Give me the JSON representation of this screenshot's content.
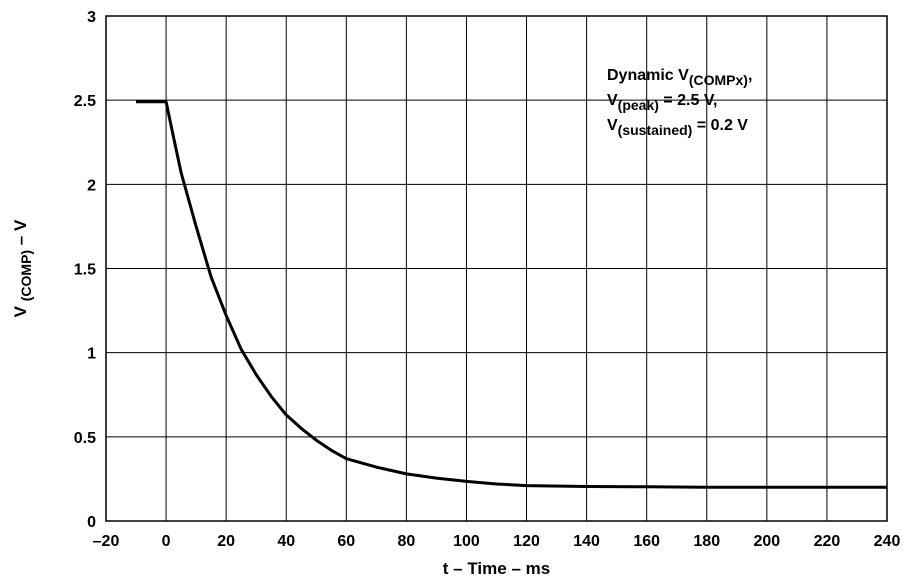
{
  "chart_data": {
    "type": "line",
    "title": "",
    "xlabel": "t – Time – ms",
    "ylabel": {
      "main": "V",
      "sub": "(COMP)",
      "suffix": "– V"
    },
    "xlim": [
      -20,
      240
    ],
    "ylim": [
      0,
      3
    ],
    "grid": true,
    "x_ticks": [
      "–20",
      "0",
      "20",
      "40",
      "60",
      "80",
      "100",
      "120",
      "140",
      "160",
      "180",
      "200",
      "220",
      "240"
    ],
    "x_tick_values": [
      -20,
      0,
      20,
      40,
      60,
      80,
      100,
      120,
      140,
      160,
      180,
      200,
      220,
      240
    ],
    "y_ticks": [
      "0",
      "0.5",
      "1",
      "1.5",
      "2",
      "2.5",
      "3"
    ],
    "y_tick_values": [
      0,
      0.5,
      1,
      1.5,
      2,
      2.5,
      3
    ],
    "annotation": [
      [
        {
          "t": "Dynamic V",
          "s": false
        },
        {
          "t": "(COMPx)",
          "s": true
        },
        {
          "t": ",",
          "s": false
        }
      ],
      [
        {
          "t": "V",
          "s": false
        },
        {
          "t": "(peak)",
          "s": true
        },
        {
          "t": " = 2.5  V,",
          "s": false
        }
      ],
      [
        {
          "t": "V",
          "s": false
        },
        {
          "t": "(sustained)",
          "s": true
        },
        {
          "t": " = 0.2  V",
          "s": false
        }
      ]
    ],
    "series": [
      {
        "x": [
          -10,
          0,
          2,
          5,
          10,
          15,
          20,
          25,
          30,
          35,
          40,
          45,
          50,
          55,
          60,
          70,
          80,
          90,
          100,
          110,
          120,
          140,
          160,
          180,
          200,
          220,
          240
        ],
        "y": [
          2.49,
          2.49,
          2.32,
          2.07,
          1.75,
          1.45,
          1.22,
          1.02,
          0.87,
          0.74,
          0.63,
          0.55,
          0.48,
          0.42,
          0.37,
          0.32,
          0.28,
          0.255,
          0.235,
          0.22,
          0.21,
          0.205,
          0.203,
          0.201,
          0.2,
          0.2,
          0.2
        ]
      }
    ],
    "line_color": "#000000",
    "grid_color": "#000000"
  }
}
